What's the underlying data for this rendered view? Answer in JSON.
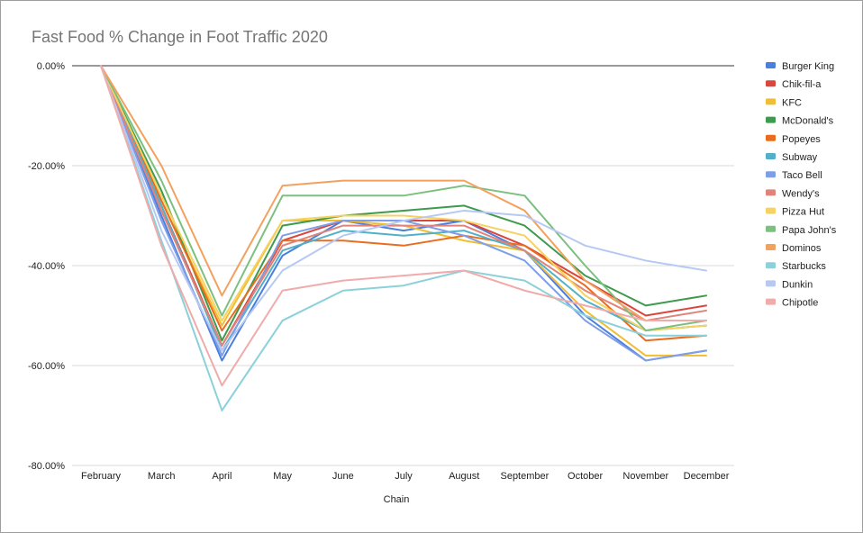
{
  "chart_data": {
    "type": "line",
    "title": "Fast Food % Change in Foot Traffic 2020",
    "xlabel": "Chain",
    "ylabel": "",
    "ylim": [
      -80,
      0
    ],
    "yticks": [
      "0.00%",
      "-20.00%",
      "-40.00%",
      "-60.00%",
      "-80.00%"
    ],
    "ytick_values": [
      0,
      -20,
      -40,
      -60,
      -80
    ],
    "grid": true,
    "legend_position": "right",
    "categories": [
      "February",
      "March",
      "April",
      "May",
      "June",
      "July",
      "August",
      "September",
      "October",
      "November",
      "December"
    ],
    "series": [
      {
        "name": "Burger King",
        "color": "#4a7fe0",
        "values": [
          0,
          -30,
          -59,
          -38,
          -31,
          -33,
          -31,
          -37,
          -50,
          -59,
          -57
        ]
      },
      {
        "name": "Chik-fil-a",
        "color": "#d9463c",
        "values": [
          0,
          -28,
          -56,
          -35,
          -31,
          -31,
          -31,
          -36,
          -43,
          -50,
          -48
        ]
      },
      {
        "name": "KFC",
        "color": "#f1bd33",
        "values": [
          0,
          -27,
          -52,
          -31,
          -31,
          -32,
          -35,
          -37,
          -49,
          -58,
          -58
        ]
      },
      {
        "name": "McDonald's",
        "color": "#3e9a4c",
        "values": [
          0,
          -25,
          -55,
          -32,
          -30,
          -29,
          -28,
          -32,
          -42,
          -48,
          -46
        ]
      },
      {
        "name": "Popeyes",
        "color": "#ea6d1f",
        "values": [
          0,
          -27,
          -53,
          -35,
          -35,
          -36,
          -34,
          -36,
          -44,
          -55,
          -54
        ]
      },
      {
        "name": "Subway",
        "color": "#50b1c9",
        "values": [
          0,
          -28,
          -57,
          -37,
          -33,
          -34,
          -33,
          -37,
          -47,
          -53,
          -52
        ]
      },
      {
        "name": "Taco Bell",
        "color": "#7f9ee8",
        "values": [
          0,
          -31,
          -58,
          -34,
          -31,
          -31,
          -34,
          -39,
          -51,
          -59,
          -57
        ]
      },
      {
        "name": "Wendy's",
        "color": "#e0837a",
        "values": [
          0,
          -29,
          -56,
          -36,
          -32,
          -32,
          -32,
          -37,
          -45,
          -51,
          -49
        ]
      },
      {
        "name": "Pizza Hut",
        "color": "#f6d261",
        "values": [
          0,
          -26,
          -51,
          -31,
          -30,
          -30,
          -31,
          -34,
          -46,
          -53,
          -52
        ]
      },
      {
        "name": "Papa John's",
        "color": "#7cc07f",
        "values": [
          0,
          -23,
          -50,
          -26,
          -26,
          -26,
          -24,
          -26,
          -40,
          -53,
          -51
        ]
      },
      {
        "name": "Dominos",
        "color": "#f2a15f",
        "values": [
          0,
          -20,
          -46,
          -24,
          -23,
          -23,
          -23,
          -29,
          -43,
          -51,
          -51
        ]
      },
      {
        "name": "Starbucks",
        "color": "#8ad1d9",
        "values": [
          0,
          -35,
          -69,
          -51,
          -45,
          -44,
          -41,
          -43,
          -50,
          -54,
          -54
        ]
      },
      {
        "name": "Dunkin",
        "color": "#b5c9f3",
        "values": [
          0,
          -33,
          -57,
          -41,
          -34,
          -31,
          -29,
          -30,
          -36,
          -39,
          -41
        ]
      },
      {
        "name": "Chipotle",
        "color": "#f0abab",
        "values": [
          0,
          -36,
          -64,
          -45,
          -43,
          -42,
          -41,
          -45,
          -48,
          -51,
          -51
        ]
      }
    ]
  }
}
